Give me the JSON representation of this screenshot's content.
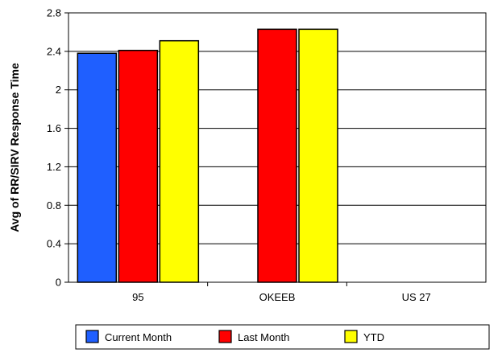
{
  "chart_data": {
    "type": "bar",
    "categories": [
      "95",
      "OKEEB",
      "US 27"
    ],
    "ylabel": "Avg of RR/SIRV Response Time",
    "xlabel": "",
    "ylim": [
      0,
      2.8
    ],
    "yticks": [
      "0",
      "0.4",
      "0.8",
      "1.2",
      "1.6",
      "2",
      "2.4",
      "2.8"
    ],
    "grid": true,
    "legend_position": "bottom",
    "series": [
      {
        "name": "Current Month",
        "color": "#1f5fff",
        "values": [
          2.38,
          null,
          null
        ]
      },
      {
        "name": "Last Month",
        "color": "#ff0000",
        "values": [
          2.41,
          2.63,
          null
        ]
      },
      {
        "name": "YTD",
        "color": "#ffff00",
        "values": [
          2.51,
          2.63,
          null
        ]
      }
    ]
  }
}
